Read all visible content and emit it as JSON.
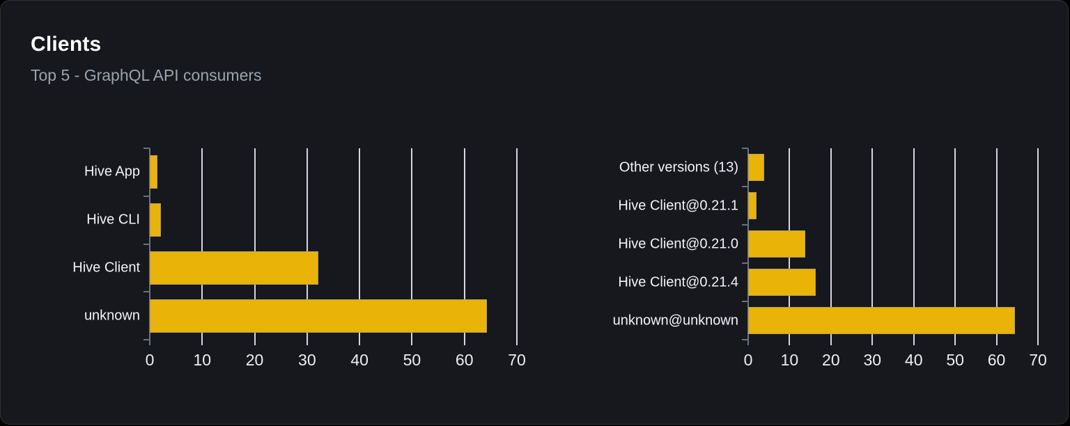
{
  "header": {
    "title": "Clients",
    "subtitle": "Top 5 - GraphQL API consumers"
  },
  "colors": {
    "card_bg": "#16181d",
    "card_border": "#2e3136",
    "title": "#ffffff",
    "subtitle": "#9ca3af",
    "bar_fill": "#eab308",
    "bar_border": "#8c9196",
    "gridline": "#d4d8de",
    "axis": "#6b7280",
    "tick_label": "#eceef0"
  },
  "chart_data": [
    {
      "type": "bar",
      "orientation": "horizontal",
      "title": "",
      "categories": [
        "Hive App",
        "Hive CLI",
        "Hive Client",
        "unknown"
      ],
      "values": [
        1.5,
        2.1,
        32.1,
        64.3
      ],
      "xlim": [
        0,
        70
      ],
      "xticks": [
        0,
        10,
        20,
        30,
        40,
        50,
        60,
        70
      ],
      "grid": true,
      "legend": false
    },
    {
      "type": "bar",
      "orientation": "horizontal",
      "title": "",
      "categories": [
        "Other versions (13)",
        "Hive Client@0.21.1",
        "Hive Client@0.21.0",
        "Hive Client@0.21.4",
        "unknown@unknown"
      ],
      "values": [
        3.9,
        2,
        13.8,
        16.4,
        64.5
      ],
      "xlim": [
        0,
        70
      ],
      "xticks": [
        0,
        10,
        20,
        30,
        40,
        50,
        60,
        70
      ],
      "grid": true,
      "legend": false
    }
  ]
}
